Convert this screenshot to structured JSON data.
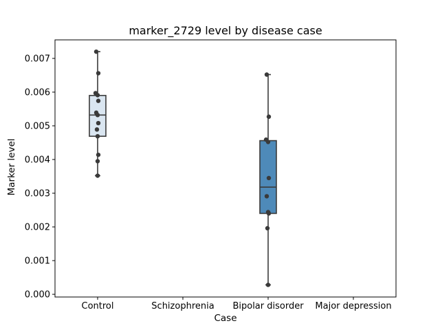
{
  "chart_data": {
    "type": "box",
    "title": "marker_2729 level by disease case",
    "xlabel": "Case",
    "ylabel": "Marker level",
    "categories": [
      "Control",
      "Schizophrenia",
      "Bipolar disorder",
      "Major depression"
    ],
    "ylim": [
      -8e-05,
      0.00755
    ],
    "yticks": [
      0.0,
      0.001,
      0.002,
      0.003,
      0.004,
      0.005,
      0.006,
      0.007
    ],
    "ytick_labels": [
      "0.000",
      "0.001",
      "0.002",
      "0.003",
      "0.004",
      "0.005",
      "0.006",
      "0.007"
    ],
    "boxes": [
      {
        "category": "Control",
        "whisker_low": 0.00352,
        "q1": 0.00469,
        "median": 0.00532,
        "q3": 0.0059,
        "whisker_high": 0.0072,
        "color": "#dae6f1",
        "points": [
          0.0072,
          0.00656,
          0.00597,
          0.00591,
          0.00574,
          0.00539,
          0.00532,
          0.00508,
          0.00489,
          0.00469,
          0.00414,
          0.00395,
          0.00352
        ]
      },
      {
        "category": "Bipolar disorder",
        "whisker_low": 0.00028,
        "q1": 0.0024,
        "median": 0.00318,
        "q3": 0.00456,
        "whisker_high": 0.00652,
        "color": "#4e8ab9",
        "points": [
          0.00652,
          0.00527,
          0.00459,
          0.00452,
          0.00345,
          0.00291,
          0.00244,
          0.0024,
          0.00196,
          0.00028
        ]
      }
    ],
    "grid": false,
    "legend": "none",
    "colors": {
      "box_edge": "#3a3a3a",
      "point": "#3a3a3a"
    }
  }
}
